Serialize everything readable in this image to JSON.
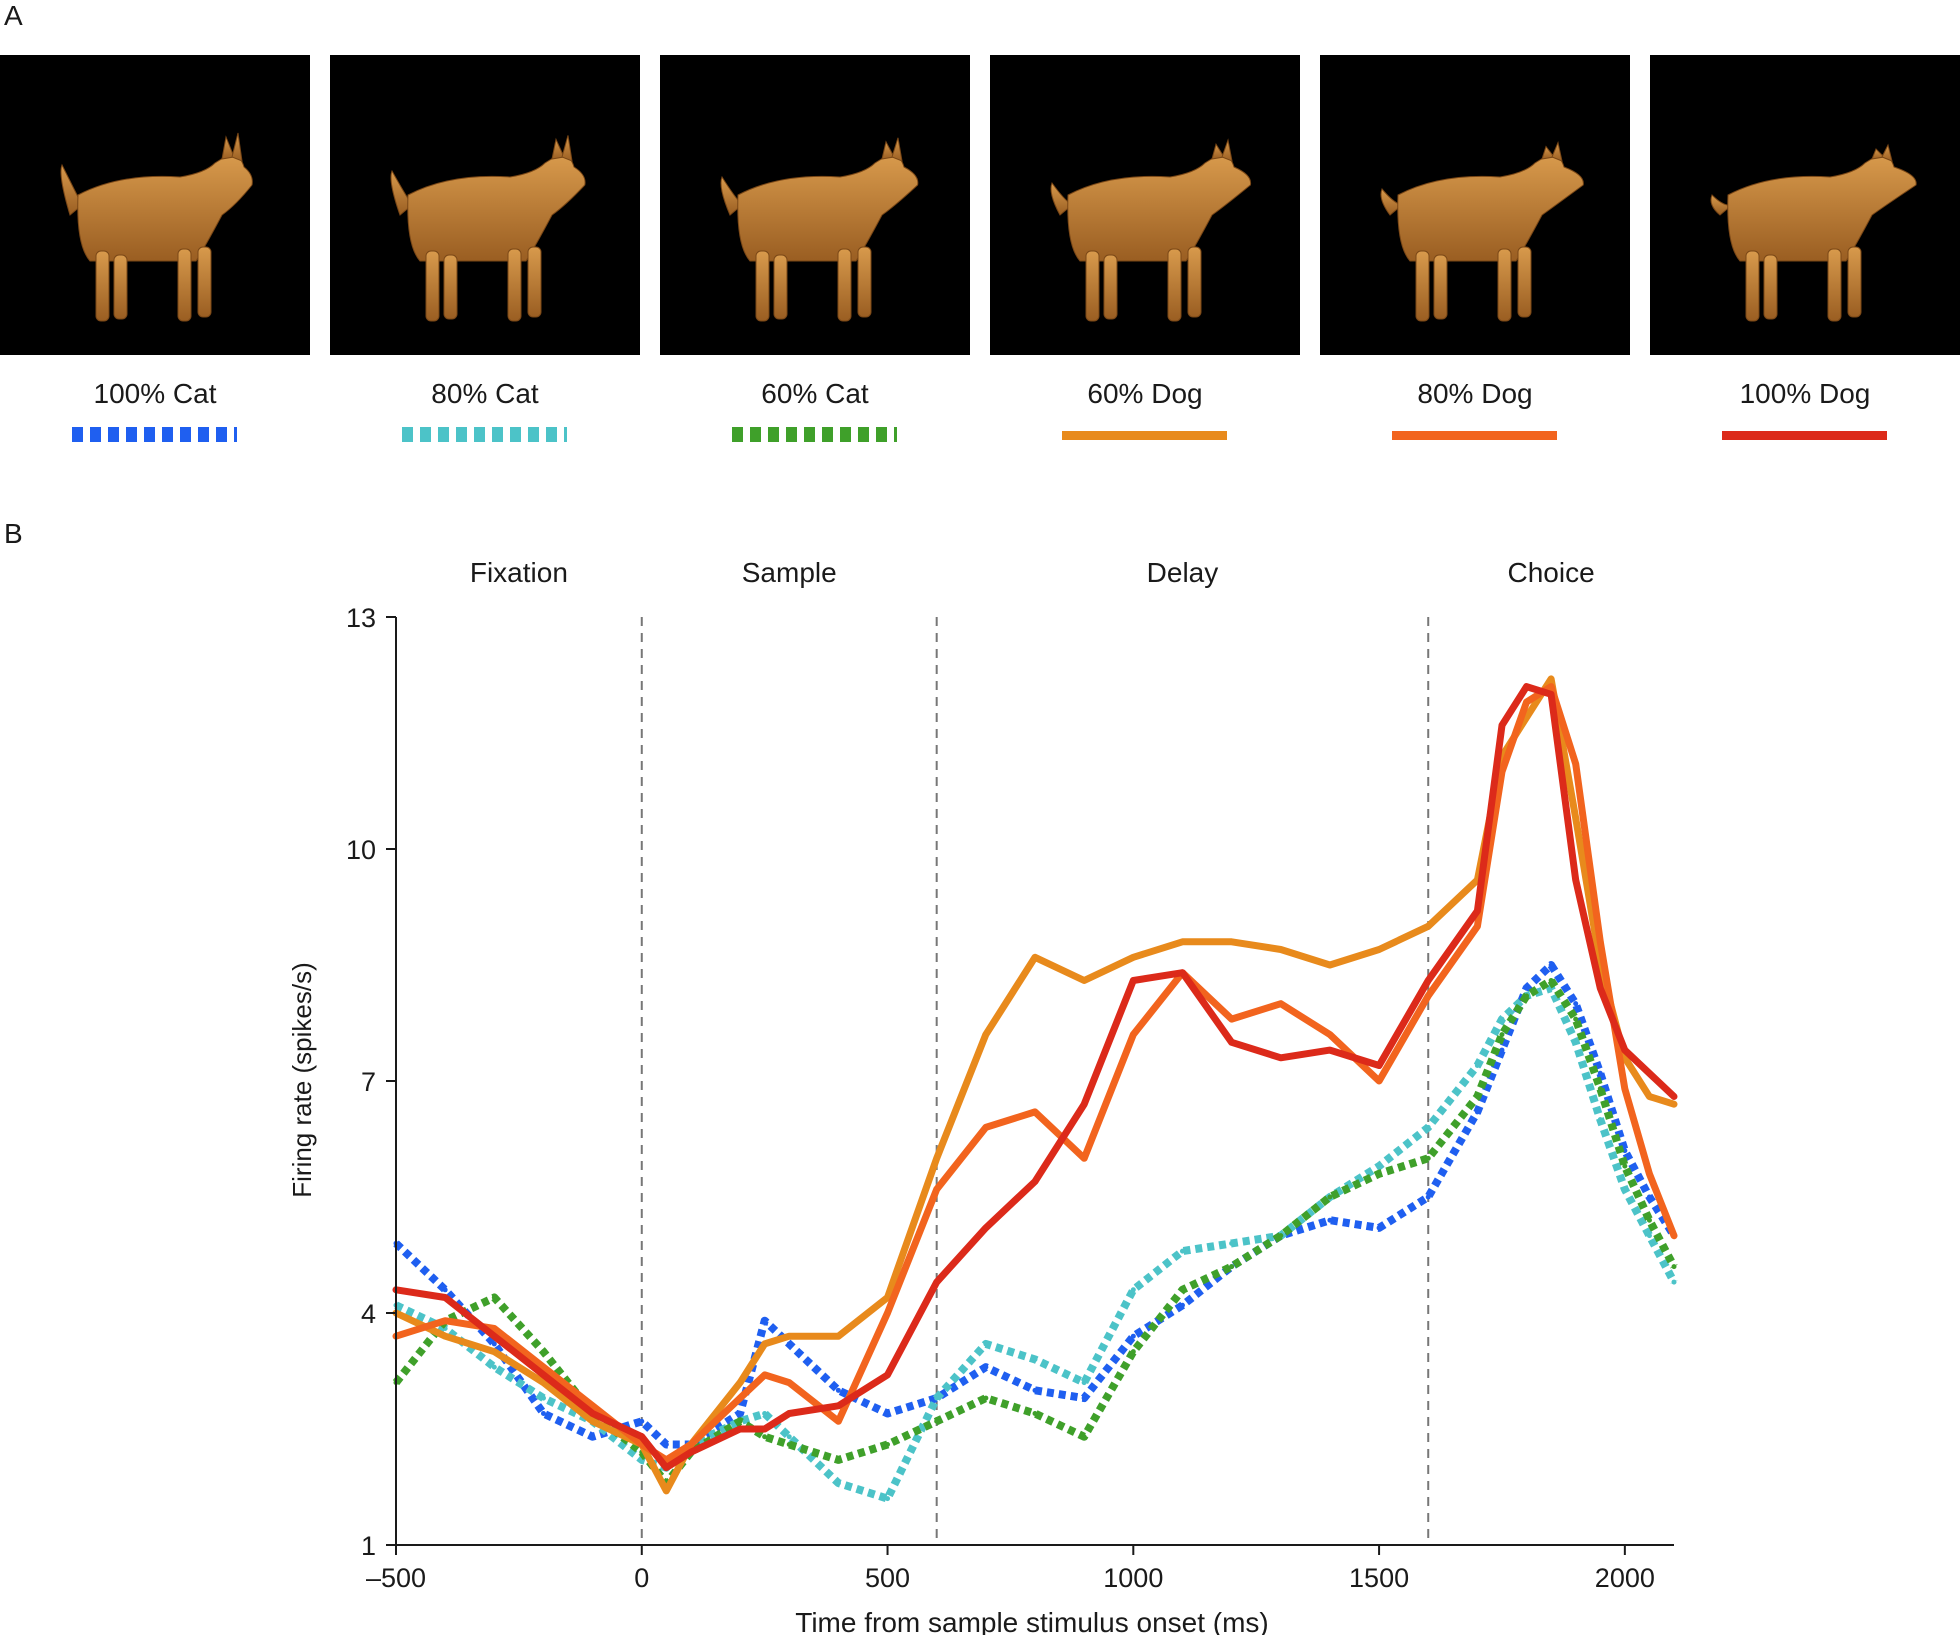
{
  "panels": {
    "a": "A",
    "b": "B"
  },
  "stimuli": [
    {
      "label": "100% Cat",
      "color": "#1f5ff0",
      "style": "dotted",
      "morph": 0.0
    },
    {
      "label": "80% Cat",
      "color": "#4cc3c8",
      "style": "dotted",
      "morph": 0.2
    },
    {
      "label": "60% Cat",
      "color": "#3fa02a",
      "style": "dotted",
      "morph": 0.4
    },
    {
      "label": "60% Dog",
      "color": "#e88a1c",
      "style": "solid",
      "morph": 0.6
    },
    {
      "label": "80% Dog",
      "color": "#f2641e",
      "style": "solid",
      "morph": 0.8
    },
    {
      "label": "100% Dog",
      "color": "#dc2a1a",
      "style": "solid",
      "morph": 1.0
    }
  ],
  "chart_data": {
    "type": "line",
    "xlabel": "Time from sample stimulus onset  (ms)",
    "ylabel": "Firing rate (spikes/s)",
    "xlim": [
      -500,
      2100
    ],
    "ylim": [
      1,
      13
    ],
    "xticks": [
      -500,
      0,
      500,
      1000,
      1500,
      2000
    ],
    "xtick_labels": [
      "–500",
      "0",
      "500",
      "1000",
      "1500",
      "2000"
    ],
    "yticks": [
      1,
      4,
      7,
      10,
      13
    ],
    "epoch_boundaries": [
      0,
      600,
      1600
    ],
    "epochs": [
      {
        "label": "Fixation",
        "x": -250
      },
      {
        "label": "Sample",
        "x": 300
      },
      {
        "label": "Delay",
        "x": 1100
      },
      {
        "label": "Choice",
        "x": 1850
      }
    ],
    "x": [
      -500,
      -400,
      -300,
      -200,
      -100,
      0,
      50,
      100,
      200,
      250,
      300,
      400,
      500,
      600,
      700,
      800,
      900,
      1000,
      1100,
      1200,
      1300,
      1400,
      1500,
      1600,
      1700,
      1750,
      1800,
      1850,
      1900,
      1950,
      2000,
      2050,
      2100
    ],
    "series": [
      {
        "name": "100% Cat",
        "values": [
          4.9,
          4.3,
          3.6,
          2.7,
          2.4,
          2.6,
          2.3,
          2.3,
          2.7,
          3.9,
          3.6,
          3.0,
          2.7,
          2.9,
          3.3,
          3.0,
          2.9,
          3.7,
          4.1,
          4.6,
          5.0,
          5.2,
          5.1,
          5.5,
          6.6,
          7.4,
          8.2,
          8.5,
          8.0,
          7.1,
          6.1,
          5.5,
          5.0
        ]
      },
      {
        "name": "80% Cat",
        "values": [
          4.1,
          3.8,
          3.3,
          2.9,
          2.6,
          2.1,
          2.0,
          2.3,
          2.6,
          2.7,
          2.4,
          1.8,
          1.6,
          2.9,
          3.6,
          3.4,
          3.1,
          4.3,
          4.8,
          4.9,
          5.0,
          5.5,
          5.9,
          6.4,
          7.2,
          7.8,
          8.1,
          8.2,
          7.5,
          6.5,
          5.6,
          5.0,
          4.4
        ]
      },
      {
        "name": "60% Cat",
        "values": [
          3.1,
          3.9,
          4.2,
          3.5,
          2.7,
          2.2,
          1.8,
          2.2,
          2.6,
          2.4,
          2.3,
          2.1,
          2.3,
          2.6,
          2.9,
          2.7,
          2.4,
          3.5,
          4.3,
          4.6,
          5.0,
          5.5,
          5.8,
          6.0,
          6.8,
          7.6,
          8.1,
          8.3,
          7.8,
          6.9,
          5.9,
          5.2,
          4.6
        ]
      },
      {
        "name": "60% Dog",
        "values": [
          4.0,
          3.7,
          3.5,
          3.1,
          2.6,
          2.3,
          1.7,
          2.3,
          3.1,
          3.6,
          3.7,
          3.7,
          4.2,
          6.0,
          7.6,
          8.6,
          8.3,
          8.6,
          8.8,
          8.8,
          8.7,
          8.5,
          8.7,
          9.0,
          9.6,
          11.2,
          11.7,
          12.2,
          10.4,
          8.5,
          7.3,
          6.8,
          6.7
        ]
      },
      {
        "name": "80% Dog",
        "values": [
          3.7,
          3.9,
          3.8,
          3.3,
          2.8,
          2.3,
          2.1,
          2.3,
          2.9,
          3.2,
          3.1,
          2.6,
          4.0,
          5.6,
          6.4,
          6.6,
          6.0,
          7.6,
          8.4,
          7.8,
          8.0,
          7.6,
          7.0,
          8.1,
          9.0,
          11.0,
          11.9,
          12.1,
          11.1,
          8.8,
          6.9,
          5.8,
          5.0
        ]
      },
      {
        "name": "100% Dog",
        "values": [
          4.3,
          4.2,
          3.7,
          3.2,
          2.7,
          2.4,
          2.0,
          2.2,
          2.5,
          2.5,
          2.7,
          2.8,
          3.2,
          4.4,
          5.1,
          5.7,
          6.7,
          8.3,
          8.4,
          7.5,
          7.3,
          7.4,
          7.2,
          8.3,
          9.2,
          11.6,
          12.1,
          12.0,
          9.6,
          8.2,
          7.4,
          7.1,
          6.8
        ]
      }
    ]
  }
}
